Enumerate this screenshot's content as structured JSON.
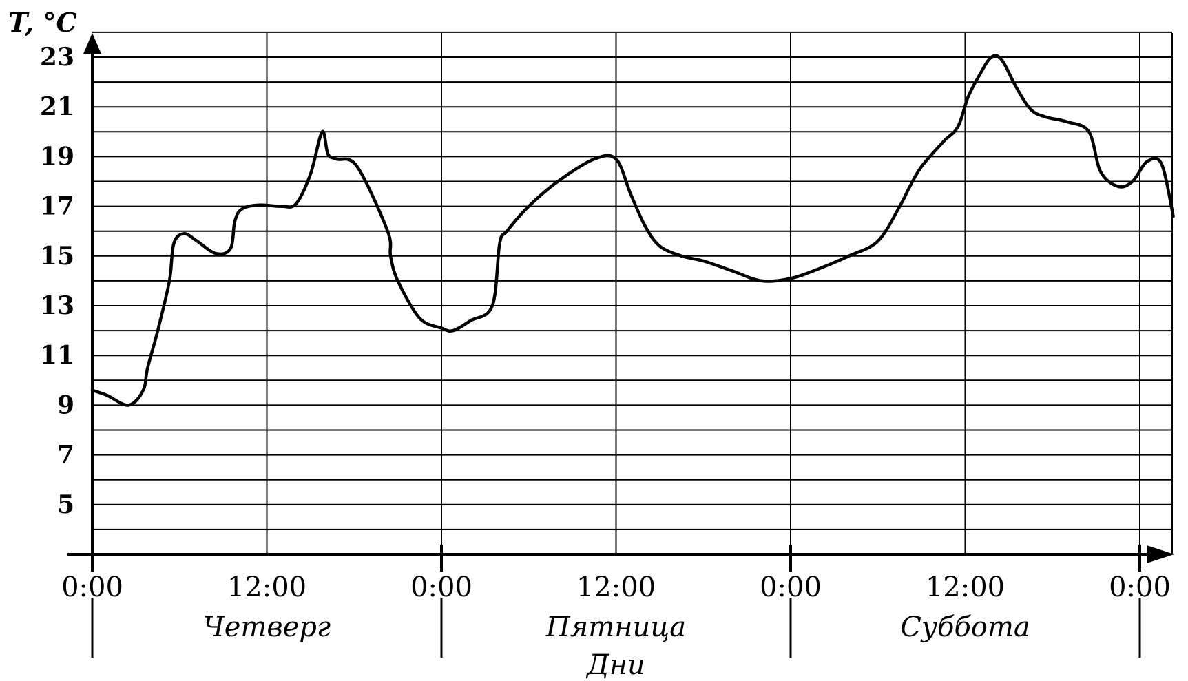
{
  "chart_data": {
    "type": "line",
    "ylabel": "T, °C",
    "xlabel": "Дни",
    "yticks": [
      5,
      7,
      9,
      11,
      13,
      15,
      17,
      19,
      21,
      23
    ],
    "ylim": [
      3,
      24
    ],
    "xlim": [
      0,
      74
    ],
    "xticks": [
      {
        "hour": 0,
        "label": "0:00"
      },
      {
        "hour": 12,
        "label": "12:00"
      },
      {
        "hour": 24,
        "label": "0:00"
      },
      {
        "hour": 36,
        "label": "12:00"
      },
      {
        "hour": 48,
        "label": "0:00"
      },
      {
        "hour": 60,
        "label": "12:00"
      },
      {
        "hour": 72,
        "label": "0:00"
      }
    ],
    "days": [
      {
        "label": "Четверг",
        "center_hour": 12
      },
      {
        "label": "Пятница",
        "center_hour": 36
      },
      {
        "label": "Суббота",
        "center_hour": 60
      }
    ],
    "grid": true,
    "series": [
      {
        "x": [
          0,
          1,
          2.5,
          3.5,
          3.8,
          4.5,
          5.3,
          5.6,
          6.3,
          7.2,
          8.5,
          9.5,
          9.8,
          10.3,
          11.5,
          13,
          14,
          15,
          15.8,
          16.2,
          16.8,
          18.2,
          20.3,
          20.5,
          21,
          22.5,
          24,
          24.8,
          26,
          27.5,
          28,
          28.5,
          30,
          32,
          34.5,
          36,
          37,
          38,
          39,
          40.5,
          42,
          44,
          46,
          48,
          50,
          52,
          54,
          55.5,
          56.2,
          57,
          58.5,
          59.5,
          60.2,
          61,
          61.8,
          62.5,
          63.5,
          64.5,
          65.5,
          67,
          68.5,
          69.3,
          70.5,
          71.5,
          72.5,
          73.5,
          74.3
        ],
        "y": [
          9.6,
          9.4,
          9.0,
          9.6,
          10.5,
          12.0,
          14.0,
          15.5,
          15.9,
          15.6,
          15.1,
          15.3,
          16.4,
          16.9,
          17.05,
          17.0,
          17.1,
          18.3,
          20.0,
          19.1,
          18.9,
          18.6,
          16.0,
          15.0,
          14.0,
          12.5,
          12.1,
          12.0,
          12.4,
          13.0,
          15.5,
          16.0,
          17.0,
          18.0,
          18.9,
          18.9,
          17.5,
          16.2,
          15.4,
          15.0,
          14.8,
          14.4,
          14.0,
          14.1,
          14.5,
          15.0,
          15.6,
          17.0,
          17.8,
          18.6,
          19.6,
          20.2,
          21.4,
          22.3,
          23.0,
          22.9,
          21.8,
          20.9,
          20.6,
          20.4,
          20.0,
          18.4,
          17.8,
          18.0,
          18.8,
          18.7,
          16.6
        ]
      }
    ]
  }
}
